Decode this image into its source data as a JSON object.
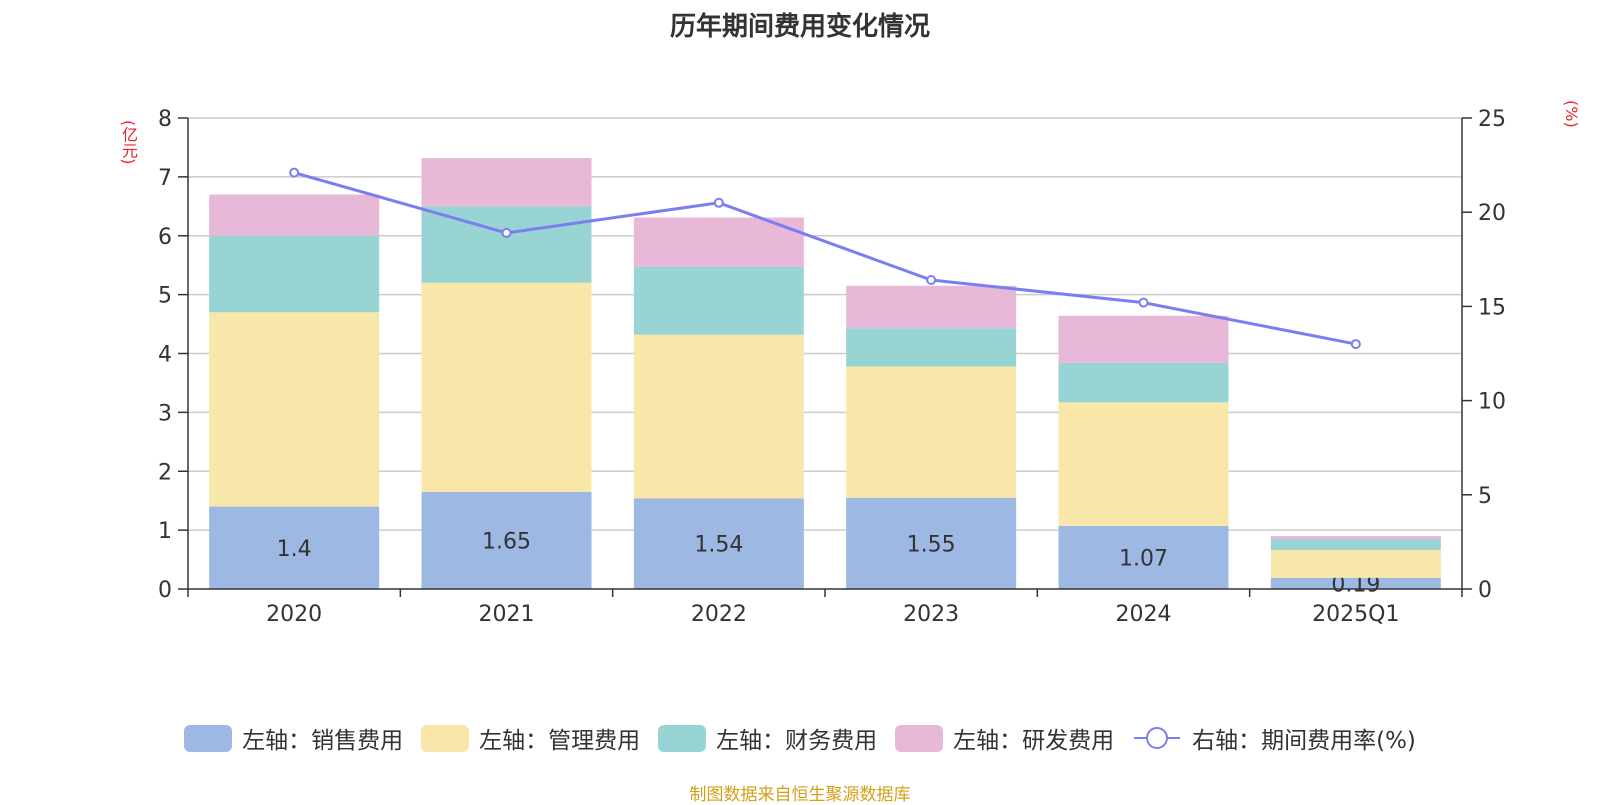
{
  "colors": {
    "sales": "#9db8e2",
    "admin": "#f8e7a8",
    "finance": "#98d4d4",
    "rnd": "#e8b8d8",
    "line": "#7b7ef0",
    "unit": "#e8232a",
    "source": "#d4a017"
  },
  "chart_data": {
    "type": "bar",
    "stacked": true,
    "title": "历年期间费用变化情况",
    "left_unit": "(亿元)",
    "right_unit": "(%)",
    "categories": [
      "2020",
      "2021",
      "2022",
      "2023",
      "2024",
      "2025Q1"
    ],
    "left_axis": {
      "min": 0,
      "max": 8,
      "ticks": [
        "0",
        "1",
        "2",
        "3",
        "4",
        "5",
        "6",
        "7",
        "8"
      ]
    },
    "right_axis": {
      "min": 0,
      "max": 25,
      "ticks": [
        "0",
        "5",
        "10",
        "15",
        "20",
        "25"
      ]
    },
    "series": [
      {
        "name": "左轴：销售费用",
        "key": "sales",
        "values": [
          1.4,
          1.65,
          1.54,
          1.55,
          1.07,
          0.19
        ],
        "labels": [
          "1.4",
          "1.65",
          "1.54",
          "1.55",
          "1.07",
          "0.19"
        ]
      },
      {
        "name": "左轴：管理费用",
        "key": "admin",
        "values": [
          3.3,
          3.55,
          2.78,
          2.23,
          2.1,
          0.47
        ]
      },
      {
        "name": "左轴：财务费用",
        "key": "finance",
        "values": [
          1.3,
          1.3,
          1.15,
          0.65,
          0.67,
          0.19
        ]
      },
      {
        "name": "左轴：研发费用",
        "key": "rnd",
        "values": [
          0.7,
          0.82,
          0.84,
          0.72,
          0.8,
          0.05
        ]
      }
    ],
    "line_series": {
      "name": "右轴：期间费用率(%)",
      "values": [
        22.1,
        18.9,
        20.5,
        16.4,
        15.2,
        13.0
      ]
    },
    "legend_position": "bottom"
  },
  "source_text": "制图数据来自恒生聚源数据库"
}
